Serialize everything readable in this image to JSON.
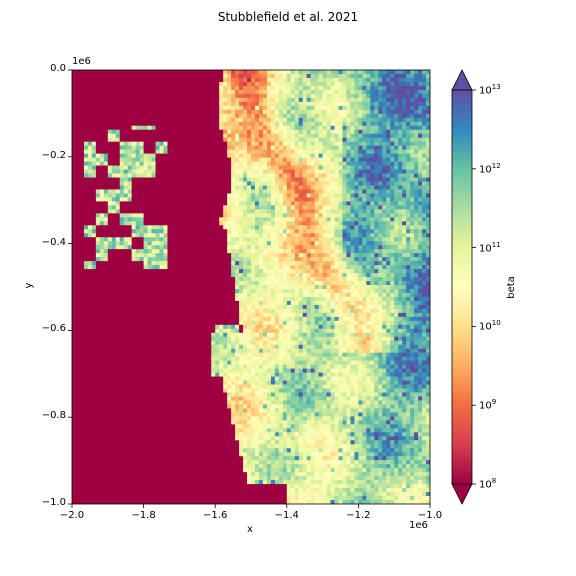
{
  "chart_data": {
    "type": "heatmap",
    "title": "Stubblefield et al. 2021",
    "xlabel": "x",
    "ylabel": "y",
    "x_offset_label": "1e6",
    "y_offset_label": "1e6",
    "xlim": [
      -2.0,
      -1.0
    ],
    "ylim": [
      -1.0,
      0.0
    ],
    "x_ticks": [
      -2.0,
      -1.8,
      -1.6,
      -1.4,
      -1.2,
      -1.0
    ],
    "x_tick_labels": [
      "−2.0",
      "−1.8",
      "−1.6",
      "−1.4",
      "−1.2",
      "−1.0"
    ],
    "y_ticks": [
      0.0,
      -0.2,
      -0.4,
      -0.6,
      -0.8,
      -1.0
    ],
    "y_tick_labels": [
      "0.0",
      "−0.2",
      "−0.4",
      "−0.6",
      "−0.8",
      "−1.0"
    ],
    "colorbar": {
      "label": "beta",
      "scale": "log",
      "range": [
        100000000.0,
        10000000000000.0
      ],
      "extend": "both",
      "colormap": "Spectral",
      "tick_base": "10",
      "tick_exponents": [
        "8",
        "9",
        "10",
        "11",
        "12",
        "13"
      ],
      "colors": [
        "#9e0142",
        "#d53e4f",
        "#f46d43",
        "#fdae61",
        "#fee08b",
        "#ffffbf",
        "#e6f598",
        "#abdda4",
        "#66c2a5",
        "#3288bd",
        "#5e4fa2"
      ]
    },
    "field_log10_beta": {
      "masked_region": "left side (ocean / no data) shown in deep red",
      "high_beta_regions": "center-right interior, yellow-green to blue",
      "low_beta_regions": "ice streams near x=-1.6 to -1.3, orange-red"
    }
  }
}
